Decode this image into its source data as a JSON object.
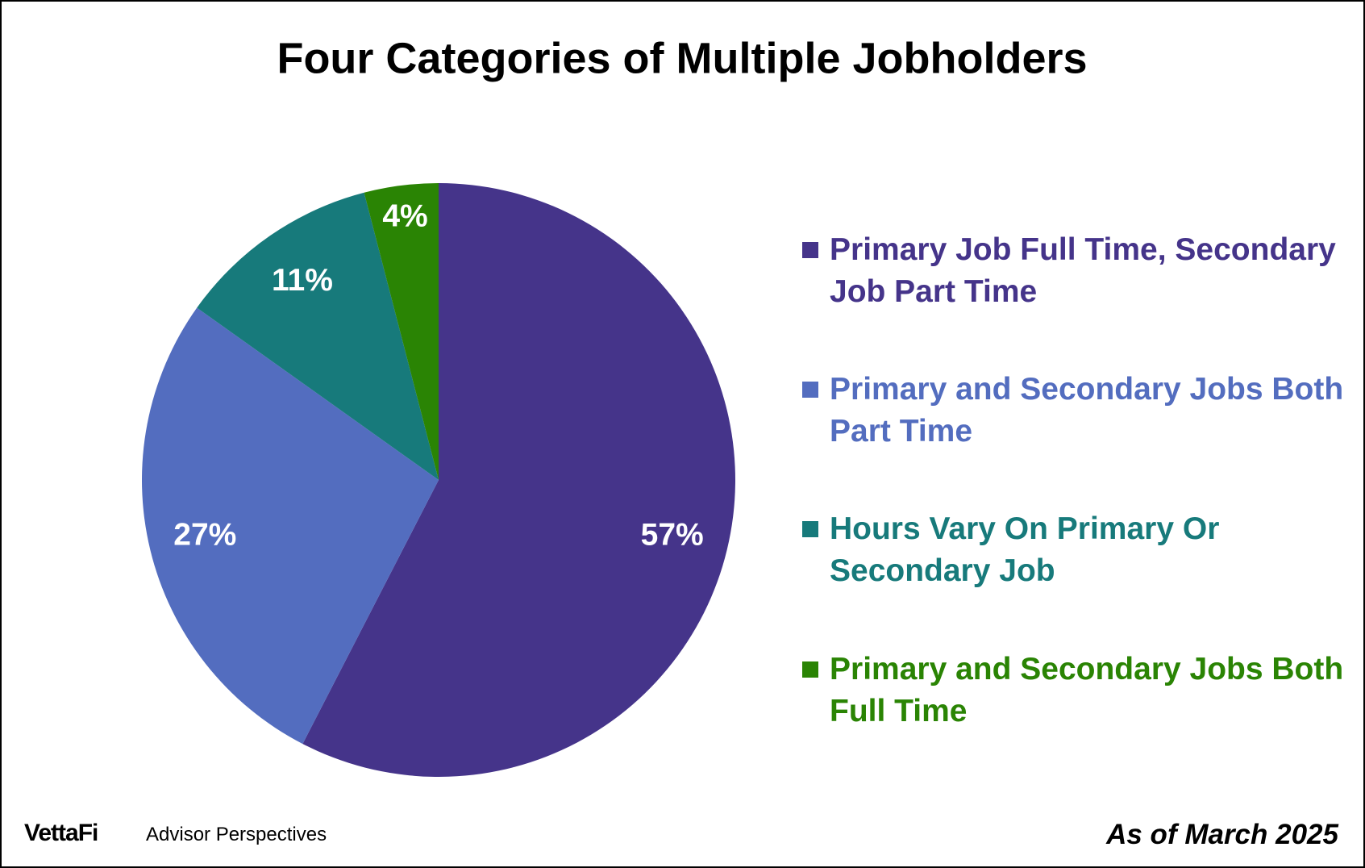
{
  "chart_data": {
    "type": "pie",
    "title": "Four Categories of Multiple Jobholders",
    "categories": [
      "Primary Job Full Time, Secondary Job Part Time",
      "Primary and Secondary Jobs Both Part Time",
      "Hours Vary On Primary Or Secondary Job",
      "Primary and Secondary Jobs Both Full Time"
    ],
    "values": [
      57,
      27,
      11,
      4
    ],
    "value_labels": [
      "57%",
      "27%",
      "11%",
      "4%"
    ],
    "colors": [
      "#45348a",
      "#536dbf",
      "#177a7b",
      "#2a8404"
    ],
    "logo": "VettaFi",
    "source": "Advisor Perspectives",
    "note": "As of March 2025"
  }
}
